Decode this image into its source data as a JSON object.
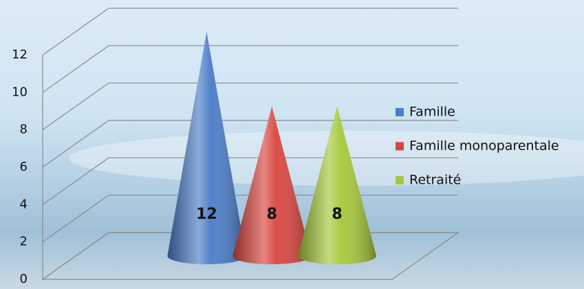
{
  "chart_data": {
    "type": "cone",
    "categories": [
      null
    ],
    "series": [
      {
        "name": "Famille",
        "color": "#4a7cc8",
        "values": [
          12
        ]
      },
      {
        "name": "Famille monoparentale",
        "color": "#d9463f",
        "values": [
          8
        ]
      },
      {
        "name": "Retraité",
        "color": "#a6c83a",
        "values": [
          8
        ]
      }
    ],
    "ylim": [
      0,
      12
    ],
    "yticks": [
      0,
      2,
      4,
      6,
      8,
      10,
      12
    ],
    "grid": true,
    "legend": "right"
  }
}
